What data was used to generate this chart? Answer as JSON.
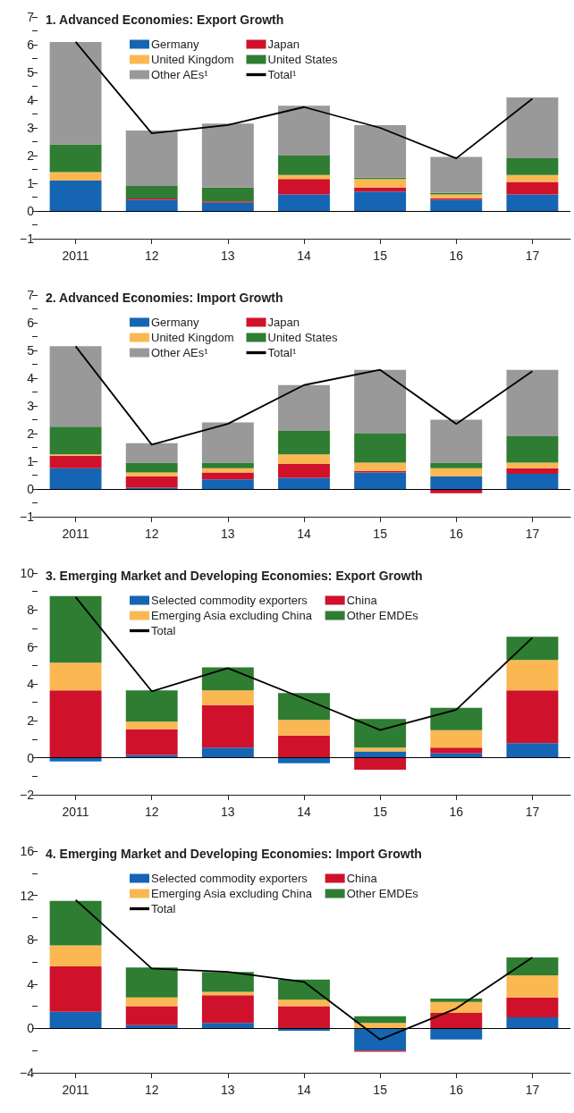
{
  "chart_data": [
    {
      "type": "bar",
      "stacked": true,
      "title": "1. Advanced Economies: Export Growth",
      "categories": [
        "2011",
        "12",
        "13",
        "14",
        "15",
        "16",
        "17"
      ],
      "legend": "top",
      "grid": false,
      "ylim": [
        -1,
        7
      ],
      "yticks": [
        -1,
        {
          "value": -0.5,
          "label": null
        },
        0,
        {
          "value": 0.5,
          "label": null
        },
        1,
        {
          "value": 1.5,
          "label": null
        },
        2,
        {
          "value": 2.5,
          "label": null
        },
        3,
        {
          "value": 3.5,
          "label": null
        },
        4,
        {
          "value": 4.5,
          "label": null
        },
        5,
        {
          "value": 5.5,
          "label": null
        },
        6,
        {
          "value": 6.5,
          "label": null
        },
        7
      ],
      "ref_lines": [
        {
          "axis": "y",
          "value": 0,
          "label": null,
          "color": "#000000"
        }
      ],
      "series": [
        {
          "name": "Germany",
          "color": "#1565b4",
          "values": [
            1.1,
            0.4,
            0.3,
            0.6,
            0.7,
            0.4,
            0.6
          ]
        },
        {
          "name": "Japan",
          "color": "#d0112b",
          "values": [
            0,
            0.05,
            0.05,
            0.55,
            0.15,
            0.05,
            0.45
          ]
        },
        {
          "name": "United Kingdom",
          "color": "#fbb852",
          "values": [
            0.3,
            0,
            0,
            0.15,
            0.3,
            0.15,
            0.25
          ]
        },
        {
          "name": "United States",
          "color": "#2e7d32",
          "values": [
            1.0,
            0.45,
            0.5,
            0.7,
            0.05,
            0.05,
            0.6
          ]
        },
        {
          "name": "Other AEs¹",
          "color": "#999999",
          "values": [
            3.7,
            2.0,
            2.3,
            1.8,
            1.9,
            1.3,
            2.2
          ]
        },
        {
          "name": "Total¹",
          "type": "line",
          "color": "#000000",
          "marker": "none",
          "values": [
            6.1,
            2.8,
            3.1,
            3.75,
            3.0,
            1.9,
            4.05
          ]
        }
      ]
    },
    {
      "type": "bar",
      "stacked": true,
      "title": "2. Advanced Economies: Import Growth",
      "categories": [
        "2011",
        "12",
        "13",
        "14",
        "15",
        "16",
        "17"
      ],
      "legend": "top",
      "grid": false,
      "ylim": [
        -1,
        7
      ],
      "yticks": [
        -1,
        {
          "value": -0.5,
          "label": null
        },
        0,
        {
          "value": 0.5,
          "label": null
        },
        1,
        {
          "value": 1.5,
          "label": null
        },
        2,
        {
          "value": 2.5,
          "label": null
        },
        3,
        {
          "value": 3.5,
          "label": null
        },
        4,
        {
          "value": 4.5,
          "label": null
        },
        5,
        {
          "value": 5.5,
          "label": null
        },
        6,
        {
          "value": 6.5,
          "label": null
        },
        7
      ],
      "ref_lines": [
        {
          "axis": "y",
          "value": 0,
          "label": null,
          "color": "#000000"
        }
      ],
      "series": [
        {
          "name": "Germany",
          "color": "#1565b4",
          "values": [
            0.75,
            0.05,
            0.35,
            0.4,
            0.6,
            0.45,
            0.55
          ]
        },
        {
          "name": "Japan",
          "color": "#d0112b",
          "values": [
            0.45,
            0.4,
            0.25,
            0.5,
            0.05,
            -0.15,
            0.2
          ]
        },
        {
          "name": "United Kingdom",
          "color": "#fbb852",
          "values": [
            0.05,
            0.15,
            0.15,
            0.35,
            0.3,
            0.3,
            0.2
          ]
        },
        {
          "name": "United States",
          "color": "#2e7d32",
          "values": [
            1.0,
            0.35,
            0.2,
            0.85,
            1.05,
            0.2,
            0.95
          ]
        },
        {
          "name": "Other AEs¹",
          "color": "#999999",
          "values": [
            2.9,
            0.7,
            1.45,
            1.65,
            2.3,
            1.55,
            2.4
          ]
        },
        {
          "name": "Total¹",
          "type": "line",
          "color": "#000000",
          "marker": "none",
          "values": [
            5.15,
            1.6,
            2.35,
            3.75,
            4.3,
            2.35,
            4.25
          ]
        }
      ]
    },
    {
      "type": "bar",
      "stacked": true,
      "title": "3. Emerging Market and Developing Economies: Export Growth",
      "categories": [
        "2011",
        "12",
        "13",
        "14",
        "15",
        "16",
        "17"
      ],
      "legend": "top",
      "grid": false,
      "ylim": [
        -2,
        10
      ],
      "yticks": [
        -2,
        {
          "value": -1,
          "label": null
        },
        0,
        {
          "value": 1,
          "label": null
        },
        2,
        {
          "value": 3,
          "label": null
        },
        4,
        {
          "value": 5,
          "label": null
        },
        6,
        {
          "value": 7,
          "label": null
        },
        8,
        {
          "value": 9,
          "label": null
        },
        10
      ],
      "ref_lines": [
        {
          "axis": "y",
          "value": 0,
          "label": null,
          "color": "#000000"
        }
      ],
      "series": [
        {
          "name": "Selected commodity exporters",
          "color": "#1565b4",
          "values": [
            -0.2,
            0.15,
            0.55,
            -0.3,
            0.35,
            0.25,
            0.8
          ]
        },
        {
          "name": "China",
          "color": "#d0112b",
          "values": [
            3.65,
            1.4,
            2.3,
            1.2,
            -0.65,
            0.3,
            2.85
          ]
        },
        {
          "name": "Emerging Asia excluding China",
          "color": "#fbb852",
          "values": [
            1.5,
            0.4,
            0.8,
            0.85,
            0.2,
            0.95,
            1.65
          ]
        },
        {
          "name": "Other EMDEs",
          "color": "#2e7d32",
          "values": [
            3.6,
            1.7,
            1.25,
            1.45,
            1.55,
            1.2,
            1.25
          ]
        },
        {
          "name": "Total",
          "type": "line",
          "color": "#000000",
          "marker": "none",
          "values": [
            8.7,
            3.6,
            4.85,
            3.2,
            1.5,
            2.6,
            6.5
          ]
        }
      ]
    },
    {
      "type": "bar",
      "stacked": true,
      "title": "4. Emerging Market and Developing Economies: Import Growth",
      "categories": [
        "2011",
        "12",
        "13",
        "14",
        "15",
        "16",
        "17"
      ],
      "legend": "top",
      "grid": false,
      "ylim": [
        -4,
        16
      ],
      "yticks": [
        -4,
        {
          "value": -2,
          "label": null
        },
        0,
        {
          "value": 2,
          "label": null
        },
        4,
        {
          "value": 6,
          "label": null
        },
        8,
        {
          "value": 10,
          "label": null
        },
        12,
        {
          "value": 14,
          "label": null
        },
        16
      ],
      "ref_lines": [
        {
          "axis": "y",
          "value": 0,
          "label": null,
          "color": "#000000"
        }
      ],
      "series": [
        {
          "name": "Selected commodity exporters",
          "color": "#1565b4",
          "values": [
            1.5,
            0.3,
            0.5,
            -0.2,
            -2.0,
            -1.0,
            1.0
          ]
        },
        {
          "name": "China",
          "color": "#d0112b",
          "values": [
            4.1,
            1.7,
            2.5,
            2.0,
            -0.1,
            1.4,
            1.8
          ]
        },
        {
          "name": "Emerging Asia excluding China",
          "color": "#fbb852",
          "values": [
            1.9,
            0.8,
            0.3,
            0.6,
            0.5,
            1.0,
            2.0
          ]
        },
        {
          "name": "Other EMDEs",
          "color": "#2e7d32",
          "values": [
            4.0,
            2.7,
            1.8,
            1.8,
            0.6,
            0.3,
            1.6
          ]
        },
        {
          "name": "Total",
          "type": "line",
          "color": "#000000",
          "marker": "none",
          "values": [
            11.6,
            5.4,
            5.1,
            4.2,
            -1.0,
            1.8,
            6.4
          ]
        }
      ]
    }
  ]
}
